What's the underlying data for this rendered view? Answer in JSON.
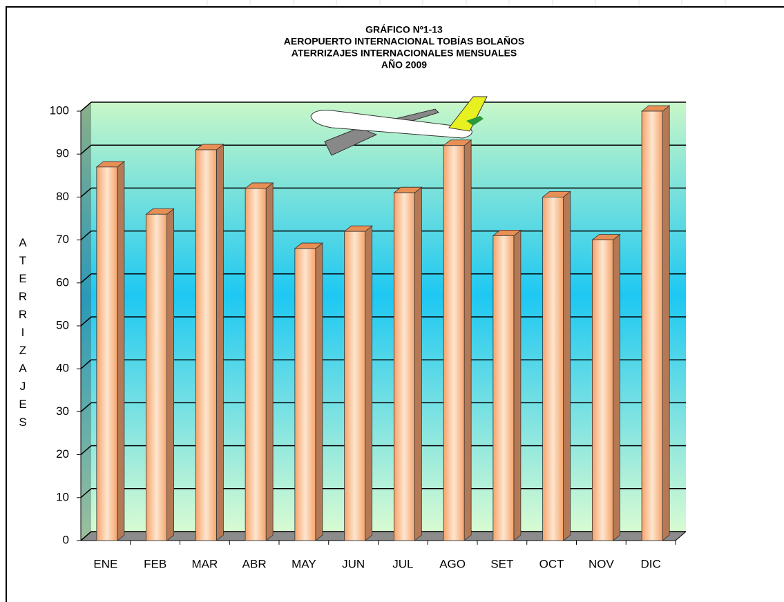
{
  "chart_data": {
    "type": "bar",
    "title": [
      "GRÁFICO Nº1-13",
      "AEROPUERTO INTERNACIONAL TOBÍAS BOLAÑOS",
      "ATERRIZAJES INTERNACIONALES MENSUALES",
      "AÑO 2009"
    ],
    "y_label": "ATERRIZAJES",
    "categories": [
      "ENE",
      "FEB",
      "MAR",
      "ABR",
      "MAY",
      "JUN",
      "JUL",
      "AGO",
      "SET",
      "OCT",
      "NOV",
      "DIC"
    ],
    "values": [
      87,
      76,
      91,
      82,
      68,
      72,
      81,
      92,
      71,
      80,
      70,
      100
    ],
    "color": "#f6a36b",
    "ylim": [
      0,
      100
    ],
    "yticks": [
      0,
      10,
      20,
      30,
      40,
      50,
      60,
      70,
      80,
      90,
      100
    ],
    "grid": true
  }
}
